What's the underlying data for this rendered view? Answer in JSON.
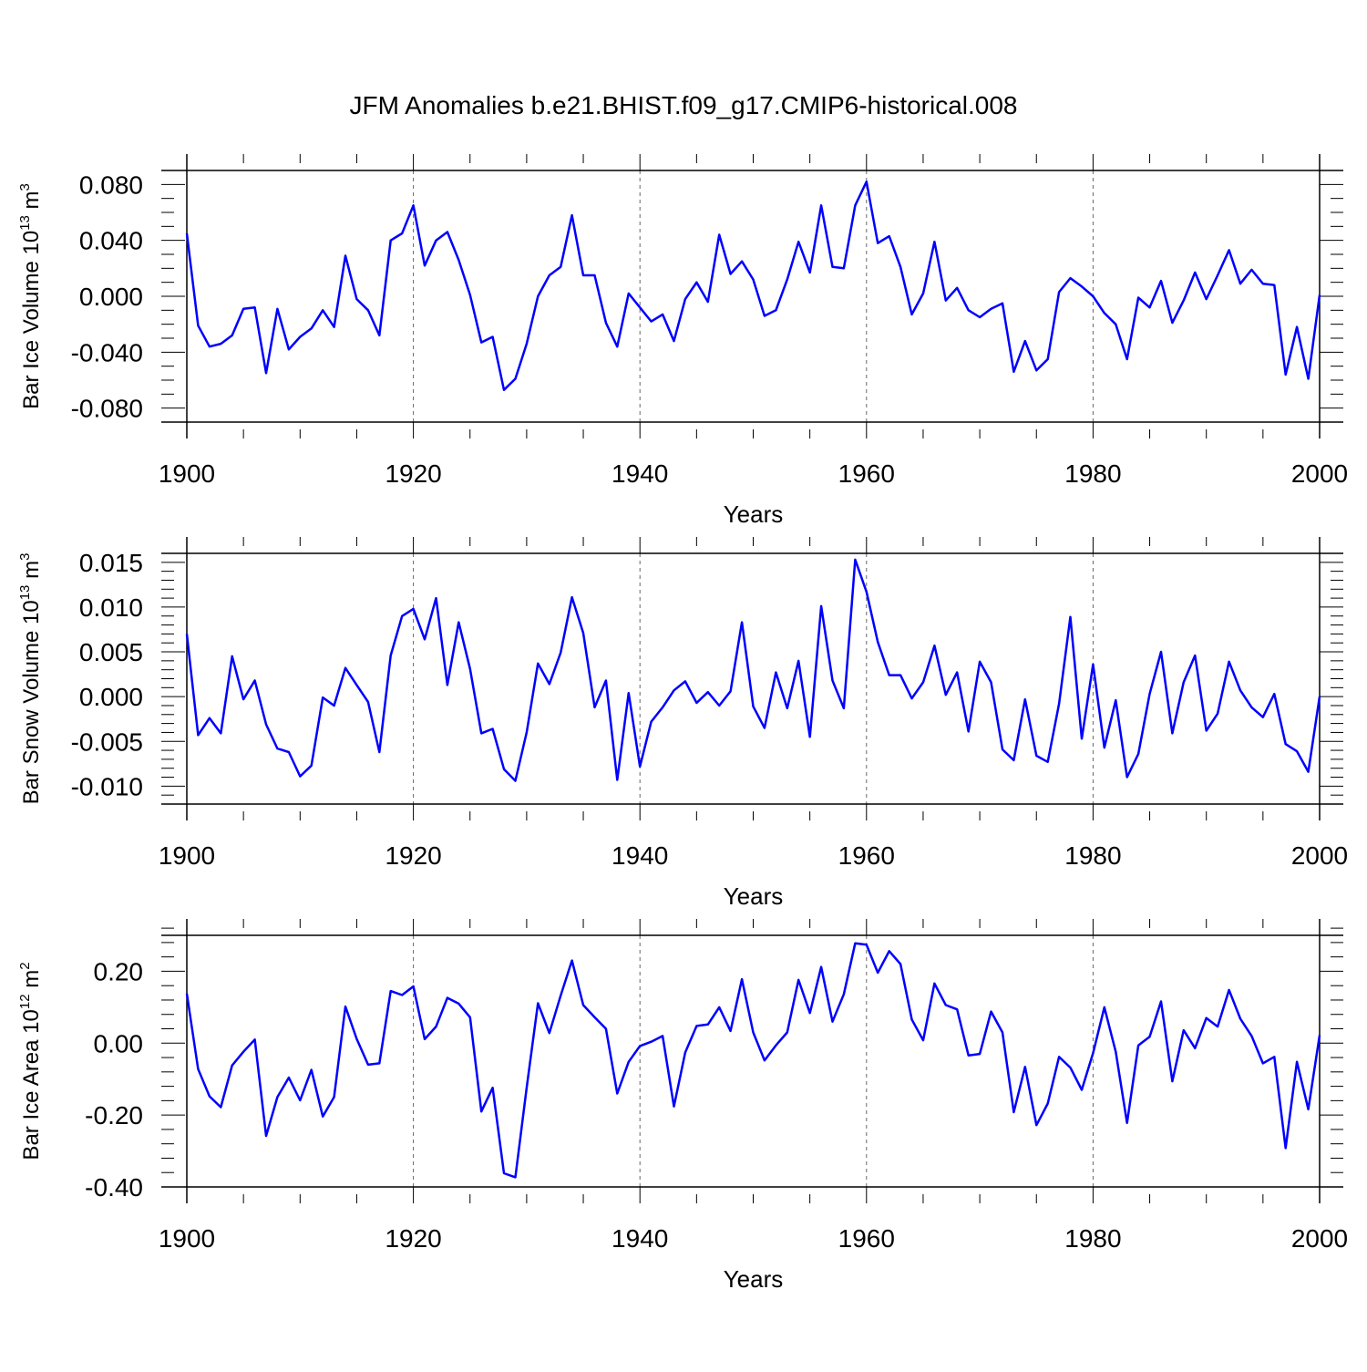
{
  "figure_title": "JFM Anomalies b.e21.BHIST.f09_g17.CMIP6-historical.008",
  "line_color": "#0000ff",
  "years": [
    1900,
    1901,
    1902,
    1903,
    1904,
    1905,
    1906,
    1907,
    1908,
    1909,
    1910,
    1911,
    1912,
    1913,
    1914,
    1915,
    1916,
    1917,
    1918,
    1919,
    1920,
    1921,
    1922,
    1923,
    1924,
    1925,
    1926,
    1927,
    1928,
    1929,
    1930,
    1931,
    1932,
    1933,
    1934,
    1935,
    1936,
    1937,
    1938,
    1939,
    1940,
    1941,
    1942,
    1943,
    1944,
    1945,
    1946,
    1947,
    1948,
    1949,
    1950,
    1951,
    1952,
    1953,
    1954,
    1955,
    1956,
    1957,
    1958,
    1959,
    1960,
    1961,
    1962,
    1963,
    1964,
    1965,
    1966,
    1967,
    1968,
    1969,
    1970,
    1971,
    1972,
    1973,
    1974,
    1975,
    1976,
    1977,
    1978,
    1979,
    1980,
    1981,
    1982,
    1983,
    1984,
    1985,
    1986,
    1987,
    1988,
    1989,
    1990,
    1991,
    1992,
    1993,
    1994,
    1995,
    1996,
    1997,
    1998,
    1999,
    2000
  ],
  "chart_data": [
    {
      "type": "line",
      "title": "JFM Anomalies b.e21.BHIST.f09_g17.CMIP6-historical.008",
      "xlabel": "Years",
      "ylabel": {
        "text": "Bar Ice Volume 10",
        "exp": "13",
        "unit": " m",
        "unit_exp": "3"
      },
      "xlim": [
        1900,
        2000
      ],
      "ylim": [
        -0.09,
        0.09
      ],
      "x_ticks": [
        1900,
        1920,
        1940,
        1960,
        1980,
        2000
      ],
      "x_tick_labels": [
        "1900",
        "1920",
        "1940",
        "1960",
        "1980",
        "2000"
      ],
      "y_ticks": [
        -0.08,
        -0.04,
        0.0,
        0.04,
        0.08
      ],
      "y_tick_labels": [
        "-0.080",
        "-0.040",
        "0.000",
        "0.040",
        "0.080"
      ],
      "y_minor_step": 0.01,
      "grid": "dashed vertical at major x ticks",
      "series": [
        {
          "name": "Bar Ice Volume",
          "values": [
            0.045,
            -0.021,
            -0.036,
            -0.034,
            -0.028,
            -0.009,
            -0.008,
            -0.055,
            -0.009,
            -0.038,
            -0.029,
            -0.023,
            -0.01,
            -0.022,
            0.029,
            -0.002,
            -0.01,
            -0.028,
            0.04,
            0.045,
            0.065,
            0.022,
            0.04,
            0.046,
            0.026,
            0.001,
            -0.033,
            -0.029,
            -0.067,
            -0.059,
            -0.034,
            0.0,
            0.015,
            0.021,
            0.058,
            0.015,
            0.015,
            -0.019,
            -0.036,
            0.002,
            -0.008,
            -0.018,
            -0.013,
            -0.032,
            -0.002,
            0.01,
            -0.004,
            0.044,
            0.016,
            0.025,
            0.012,
            -0.014,
            -0.01,
            0.012,
            0.039,
            0.017,
            0.065,
            0.021,
            0.02,
            0.065,
            0.082,
            0.038,
            0.043,
            0.021,
            -0.013,
            0.002,
            0.039,
            -0.003,
            0.006,
            -0.01,
            -0.015,
            -0.009,
            -0.005,
            -0.054,
            -0.032,
            -0.053,
            -0.045,
            0.003,
            0.013,
            0.007,
            0.0,
            -0.012,
            -0.02,
            -0.045,
            -0.001,
            -0.008,
            0.011,
            -0.019,
            -0.003,
            0.017,
            -0.002,
            0.015,
            0.033,
            0.009,
            0.019,
            0.009,
            0.008,
            -0.056,
            -0.022,
            -0.059,
            0.001
          ]
        }
      ]
    },
    {
      "type": "line",
      "xlabel": "Years",
      "ylabel": {
        "text": "Bar Snow Volume 10",
        "exp": "13",
        "unit": " m",
        "unit_exp": "3"
      },
      "xlim": [
        1900,
        2000
      ],
      "ylim": [
        -0.012,
        0.016
      ],
      "x_ticks": [
        1900,
        1920,
        1940,
        1960,
        1980,
        2000
      ],
      "x_tick_labels": [
        "1900",
        "1920",
        "1940",
        "1960",
        "1980",
        "2000"
      ],
      "y_ticks": [
        -0.01,
        -0.005,
        0.0,
        0.005,
        0.01,
        0.015
      ],
      "y_tick_labels": [
        "-0.010",
        "-0.005",
        "0.000",
        "0.005",
        "0.010",
        "0.015"
      ],
      "y_minor_step": 0.001,
      "grid": "dashed vertical at major x ticks",
      "series": [
        {
          "name": "Bar Snow Volume",
          "values": [
            0.007,
            -0.0043,
            -0.0024,
            -0.0041,
            0.0045,
            -0.0003,
            0.0018,
            -0.0031,
            -0.0058,
            -0.0062,
            -0.0089,
            -0.0077,
            -0.0001,
            -0.001,
            0.0032,
            0.0013,
            -0.0006,
            -0.0062,
            0.0046,
            0.009,
            0.0098,
            0.0064,
            0.011,
            0.0013,
            0.0083,
            0.0031,
            -0.0041,
            -0.0036,
            -0.0081,
            -0.0094,
            -0.004,
            0.0037,
            0.0014,
            0.0049,
            0.0111,
            0.0071,
            -0.0012,
            0.0018,
            -0.0093,
            0.0004,
            -0.0078,
            -0.0028,
            -0.0012,
            0.0007,
            0.0017,
            -0.0007,
            0.0005,
            -0.001,
            0.0006,
            0.0083,
            -0.0011,
            -0.0035,
            0.0027,
            -0.0013,
            0.004,
            -0.0045,
            0.0101,
            0.0018,
            -0.0013,
            0.0153,
            0.0117,
            0.0061,
            0.0024,
            0.0024,
            -0.0002,
            0.0016,
            0.0057,
            0.0002,
            0.0027,
            -0.0039,
            0.0039,
            0.0016,
            -0.0059,
            -0.0071,
            -0.0003,
            -0.0066,
            -0.0073,
            -0.0008,
            0.0089,
            -0.0047,
            0.0036,
            -0.0057,
            -0.0004,
            -0.009,
            -0.0064,
            0.0003,
            0.005,
            -0.0041,
            0.0016,
            0.0046,
            -0.0038,
            -0.0019,
            0.0039,
            0.0007,
            -0.0012,
            -0.0023,
            0.0003,
            -0.0053,
            -0.0061,
            -0.0084,
            0.0
          ]
        }
      ]
    },
    {
      "type": "line",
      "xlabel": "Years",
      "ylabel": {
        "text": "Bar Ice Area 10",
        "exp": "12",
        "unit": " m",
        "unit_exp": "2"
      },
      "xlim": [
        1900,
        2000
      ],
      "ylim": [
        -0.4,
        0.3
      ],
      "x_ticks": [
        1900,
        1920,
        1940,
        1960,
        1980,
        2000
      ],
      "x_tick_labels": [
        "1900",
        "1920",
        "1940",
        "1960",
        "1980",
        "2000"
      ],
      "y_ticks": [
        -0.4,
        -0.2,
        0.0,
        0.2
      ],
      "y_tick_labels": [
        "-0.40",
        "-0.20",
        "0.00",
        "0.20"
      ],
      "y_minor_step": 0.04,
      "grid": "dashed vertical at major x ticks",
      "series": [
        {
          "name": "Bar Ice Area",
          "values": [
            0.138,
            -0.072,
            -0.148,
            -0.178,
            -0.062,
            -0.024,
            0.01,
            -0.258,
            -0.15,
            -0.096,
            -0.159,
            -0.074,
            -0.204,
            -0.15,
            0.102,
            0.012,
            -0.06,
            -0.056,
            0.145,
            0.134,
            0.158,
            0.011,
            0.046,
            0.126,
            0.11,
            0.072,
            -0.19,
            -0.124,
            -0.362,
            -0.373,
            -0.124,
            0.111,
            0.028,
            0.132,
            0.23,
            0.106,
            0.072,
            0.04,
            -0.14,
            -0.052,
            -0.008,
            0.004,
            0.02,
            -0.176,
            -0.026,
            0.048,
            0.052,
            0.1,
            0.034,
            0.178,
            0.03,
            -0.048,
            -0.006,
            0.03,
            0.176,
            0.084,
            0.212,
            0.06,
            0.136,
            0.278,
            0.274,
            0.196,
            0.256,
            0.22,
            0.066,
            0.008,
            0.166,
            0.106,
            0.094,
            -0.034,
            -0.03,
            0.088,
            0.03,
            -0.192,
            -0.066,
            -0.228,
            -0.168,
            -0.038,
            -0.068,
            -0.13,
            -0.028,
            0.1,
            -0.024,
            -0.222,
            -0.006,
            0.018,
            0.116,
            -0.106,
            0.036,
            -0.014,
            0.07,
            0.046,
            0.148,
            0.068,
            0.02,
            -0.056,
            -0.038,
            -0.292,
            -0.052,
            -0.184,
            0.022
          ]
        }
      ]
    }
  ]
}
